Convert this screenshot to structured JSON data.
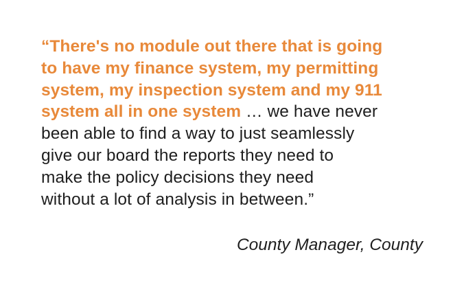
{
  "colors": {
    "highlight": "#e8893a",
    "text": "#1e1e1e",
    "background": "#ffffff"
  },
  "quote": {
    "lines": [
      {
        "highlight": "“There's no module out there that is going",
        "rest": ""
      },
      {
        "highlight": "to have my finance system, my permitting",
        "rest": ""
      },
      {
        "highlight": "system, my inspection system and my 911",
        "rest": ""
      },
      {
        "highlight": "system all in one system",
        "rest": " … we have never"
      },
      {
        "highlight": "",
        "rest": "been able to find a way to just seamlessly"
      },
      {
        "highlight": "",
        "rest": "give our board the reports they need to"
      },
      {
        "highlight": "",
        "rest": "make the policy decisions they need"
      },
      {
        "highlight": "",
        "rest": "without a lot of analysis in between.”"
      }
    ]
  },
  "attribution": "County Manager, County"
}
